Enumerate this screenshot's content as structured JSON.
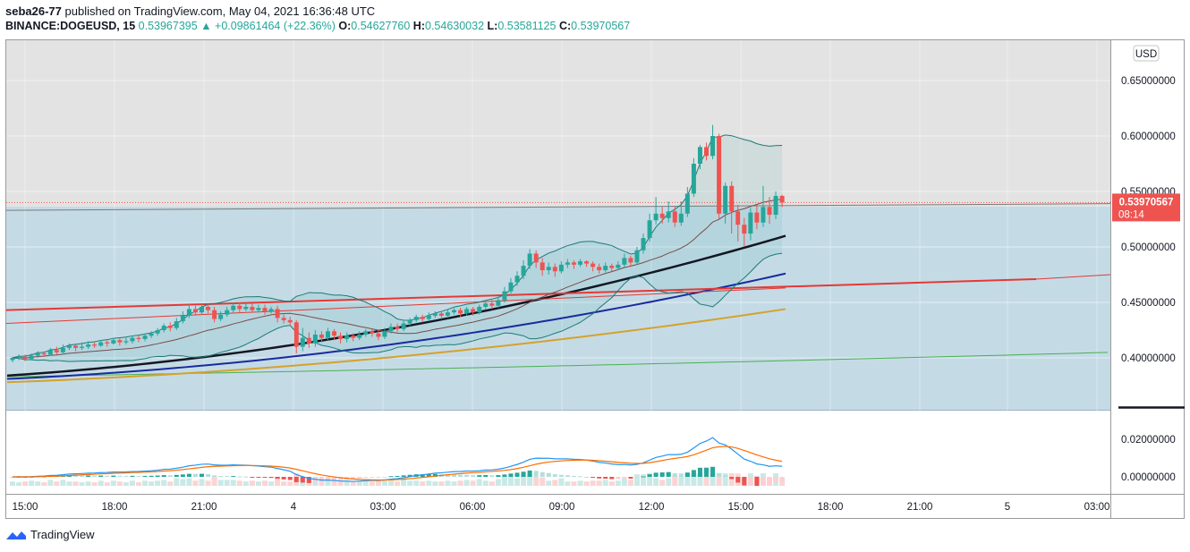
{
  "header": {
    "author": "seba26-77",
    "published": "published on TradingView.com, May 04, 2021 16:36:48 UTC",
    "symbol": "BINANCE:DOGEUSD, 15",
    "last": "0.53967395",
    "arrow": "▲",
    "change": "+0.09861464 (+22.36%)",
    "o_label": "O:",
    "o": "0.54627760",
    "h_label": "H:",
    "h": "0.54630032",
    "l_label": "L:",
    "l": "0.53581125",
    "c_label": "C:",
    "c": "0.53970567"
  },
  "currency_badge": "USD",
  "price_tag": {
    "value": "0.53970567",
    "countdown": "08:14"
  },
  "footer": {
    "brand": "TradingView"
  },
  "colors": {
    "up": "#26a69a",
    "down": "#ef5350",
    "ema_black": "#131722",
    "ema_navy": "#1a2a9e",
    "ema_gold": "#d4a22c",
    "ema_green": "#4caf50",
    "trend_red": "#e53935",
    "bb": "#1e7a78",
    "box": "#c4dbe6",
    "top_shade": "#e3e3e3"
  },
  "chart_data": {
    "type": "candlestick",
    "y_axis_ticks": [
      "0.65000000",
      "0.60000000",
      "0.55000000",
      "0.50000000",
      "0.45000000",
      "0.40000000"
    ],
    "ylim": [
      0.355,
      0.685
    ],
    "x_axis_ticks": [
      "15:00",
      "18:00",
      "21:00",
      "4",
      "03:00",
      "06:00",
      "09:00",
      "12:00",
      "15:00",
      "18:00",
      "21:00",
      "5",
      "03:00"
    ],
    "candles": [
      [
        0.398,
        0.4,
        0.396,
        0.401
      ],
      [
        0.4,
        0.401,
        0.398,
        0.403
      ],
      [
        0.401,
        0.399,
        0.397,
        0.403
      ],
      [
        0.399,
        0.402,
        0.398,
        0.404
      ],
      [
        0.402,
        0.404,
        0.4,
        0.406
      ],
      [
        0.404,
        0.403,
        0.401,
        0.406
      ],
      [
        0.403,
        0.407,
        0.402,
        0.409
      ],
      [
        0.407,
        0.405,
        0.403,
        0.41
      ],
      [
        0.405,
        0.409,
        0.404,
        0.412
      ],
      [
        0.409,
        0.411,
        0.407,
        0.413
      ],
      [
        0.411,
        0.409,
        0.406,
        0.413
      ],
      [
        0.409,
        0.41,
        0.407,
        0.414
      ],
      [
        0.41,
        0.412,
        0.408,
        0.415
      ],
      [
        0.412,
        0.411,
        0.409,
        0.414
      ],
      [
        0.411,
        0.414,
        0.41,
        0.416
      ],
      [
        0.414,
        0.413,
        0.41,
        0.416
      ],
      [
        0.413,
        0.416,
        0.412,
        0.418
      ],
      [
        0.416,
        0.414,
        0.411,
        0.418
      ],
      [
        0.414,
        0.415,
        0.412,
        0.418
      ],
      [
        0.415,
        0.418,
        0.413,
        0.42
      ],
      [
        0.418,
        0.417,
        0.414,
        0.42
      ],
      [
        0.417,
        0.42,
        0.415,
        0.422
      ],
      [
        0.42,
        0.422,
        0.418,
        0.424
      ],
      [
        0.422,
        0.425,
        0.42,
        0.427
      ],
      [
        0.425,
        0.429,
        0.423,
        0.431
      ],
      [
        0.429,
        0.427,
        0.424,
        0.432
      ],
      [
        0.427,
        0.433,
        0.425,
        0.436
      ],
      [
        0.433,
        0.438,
        0.431,
        0.442
      ],
      [
        0.438,
        0.444,
        0.436,
        0.449
      ],
      [
        0.444,
        0.441,
        0.438,
        0.447
      ],
      [
        0.441,
        0.446,
        0.439,
        0.449
      ],
      [
        0.446,
        0.443,
        0.44,
        0.449
      ],
      [
        0.443,
        0.435,
        0.432,
        0.446
      ],
      [
        0.435,
        0.439,
        0.433,
        0.442
      ],
      [
        0.439,
        0.443,
        0.437,
        0.446
      ],
      [
        0.443,
        0.447,
        0.441,
        0.45
      ],
      [
        0.447,
        0.444,
        0.441,
        0.45
      ],
      [
        0.444,
        0.446,
        0.442,
        0.449
      ],
      [
        0.446,
        0.443,
        0.441,
        0.449
      ],
      [
        0.443,
        0.445,
        0.441,
        0.448
      ],
      [
        0.445,
        0.442,
        0.439,
        0.448
      ],
      [
        0.442,
        0.444,
        0.44,
        0.446
      ],
      [
        0.444,
        0.436,
        0.432,
        0.447
      ],
      [
        0.436,
        0.434,
        0.431,
        0.439
      ],
      [
        0.434,
        0.432,
        0.429,
        0.437
      ],
      [
        0.432,
        0.41,
        0.404,
        0.434
      ],
      [
        0.41,
        0.418,
        0.406,
        0.427
      ],
      [
        0.418,
        0.413,
        0.409,
        0.423
      ],
      [
        0.413,
        0.421,
        0.41,
        0.425
      ],
      [
        0.421,
        0.418,
        0.414,
        0.424
      ],
      [
        0.418,
        0.424,
        0.416,
        0.427
      ],
      [
        0.424,
        0.42,
        0.416,
        0.426
      ],
      [
        0.42,
        0.417,
        0.413,
        0.423
      ],
      [
        0.417,
        0.42,
        0.414,
        0.423
      ],
      [
        0.42,
        0.418,
        0.415,
        0.422
      ],
      [
        0.418,
        0.421,
        0.416,
        0.424
      ],
      [
        0.421,
        0.424,
        0.419,
        0.426
      ],
      [
        0.424,
        0.422,
        0.419,
        0.426
      ],
      [
        0.422,
        0.419,
        0.416,
        0.425
      ],
      [
        0.419,
        0.424,
        0.417,
        0.427
      ],
      [
        0.424,
        0.428,
        0.422,
        0.431
      ],
      [
        0.428,
        0.426,
        0.423,
        0.431
      ],
      [
        0.426,
        0.431,
        0.424,
        0.433
      ],
      [
        0.431,
        0.434,
        0.429,
        0.436
      ],
      [
        0.434,
        0.437,
        0.432,
        0.439
      ],
      [
        0.437,
        0.435,
        0.432,
        0.439
      ],
      [
        0.435,
        0.438,
        0.433,
        0.441
      ],
      [
        0.438,
        0.44,
        0.436,
        0.442
      ],
      [
        0.44,
        0.438,
        0.435,
        0.442
      ],
      [
        0.438,
        0.441,
        0.436,
        0.444
      ],
      [
        0.441,
        0.443,
        0.439,
        0.445
      ],
      [
        0.443,
        0.44,
        0.437,
        0.445
      ],
      [
        0.44,
        0.444,
        0.438,
        0.446
      ],
      [
        0.444,
        0.441,
        0.438,
        0.446
      ],
      [
        0.441,
        0.446,
        0.439,
        0.448
      ],
      [
        0.446,
        0.449,
        0.444,
        0.452
      ],
      [
        0.449,
        0.447,
        0.444,
        0.452
      ],
      [
        0.447,
        0.452,
        0.445,
        0.455
      ],
      [
        0.452,
        0.46,
        0.45,
        0.464
      ],
      [
        0.46,
        0.468,
        0.458,
        0.472
      ],
      [
        0.468,
        0.474,
        0.465,
        0.478
      ],
      [
        0.474,
        0.483,
        0.471,
        0.488
      ],
      [
        0.483,
        0.494,
        0.48,
        0.498
      ],
      [
        0.494,
        0.486,
        0.481,
        0.497
      ],
      [
        0.486,
        0.479,
        0.474,
        0.49
      ],
      [
        0.479,
        0.482,
        0.475,
        0.486
      ],
      [
        0.482,
        0.478,
        0.473,
        0.485
      ],
      [
        0.478,
        0.484,
        0.476,
        0.487
      ],
      [
        0.484,
        0.486,
        0.481,
        0.489
      ],
      [
        0.486,
        0.484,
        0.48,
        0.488
      ],
      [
        0.484,
        0.487,
        0.482,
        0.489
      ],
      [
        0.487,
        0.485,
        0.482,
        0.488
      ],
      [
        0.485,
        0.482,
        0.478,
        0.487
      ],
      [
        0.482,
        0.479,
        0.476,
        0.485
      ],
      [
        0.479,
        0.483,
        0.477,
        0.486
      ],
      [
        0.483,
        0.481,
        0.478,
        0.485
      ],
      [
        0.481,
        0.484,
        0.479,
        0.487
      ],
      [
        0.484,
        0.49,
        0.482,
        0.494
      ],
      [
        0.49,
        0.486,
        0.482,
        0.492
      ],
      [
        0.486,
        0.497,
        0.484,
        0.5
      ],
      [
        0.497,
        0.508,
        0.494,
        0.512
      ],
      [
        0.508,
        0.524,
        0.505,
        0.53
      ],
      [
        0.524,
        0.53,
        0.52,
        0.545
      ],
      [
        0.53,
        0.526,
        0.521,
        0.536
      ],
      [
        0.526,
        0.532,
        0.522,
        0.541
      ],
      [
        0.532,
        0.522,
        0.518,
        0.537
      ],
      [
        0.522,
        0.53,
        0.519,
        0.541
      ],
      [
        0.53,
        0.548,
        0.527,
        0.554
      ],
      [
        0.548,
        0.575,
        0.545,
        0.58
      ],
      [
        0.575,
        0.59,
        0.57,
        0.592
      ],
      [
        0.59,
        0.582,
        0.578,
        0.594
      ],
      [
        0.582,
        0.6,
        0.579,
        0.61
      ],
      [
        0.6,
        0.53,
        0.525,
        0.602
      ],
      [
        0.53,
        0.555,
        0.521,
        0.558
      ],
      [
        0.555,
        0.532,
        0.512,
        0.559
      ],
      [
        0.532,
        0.52,
        0.505,
        0.538
      ],
      [
        0.52,
        0.512,
        0.5,
        0.526
      ],
      [
        0.512,
        0.531,
        0.506,
        0.535
      ],
      [
        0.531,
        0.522,
        0.516,
        0.538
      ],
      [
        0.522,
        0.536,
        0.518,
        0.555
      ],
      [
        0.536,
        0.529,
        0.521,
        0.545
      ],
      [
        0.529,
        0.546,
        0.525,
        0.55
      ],
      [
        0.546,
        0.54,
        0.536,
        0.547
      ]
    ]
  }
}
